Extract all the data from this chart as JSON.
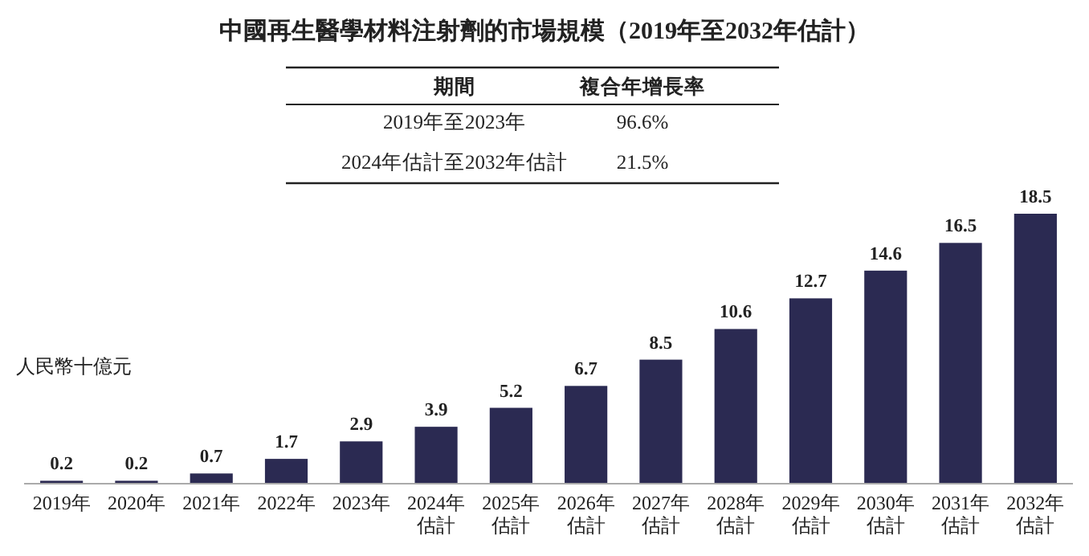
{
  "chart_data": {
    "type": "bar",
    "title": "中國再生醫學材料注射劑的市場規模（2019年至2032年估計）",
    "ylabel": "人民幣十億元",
    "categories": [
      "2019年",
      "2020年",
      "2021年",
      "2022年",
      "2023年",
      "2024年估計",
      "2025年估計",
      "2026年估計",
      "2027年估計",
      "2028年估計",
      "2029年估計",
      "2030年估計",
      "2031年估計",
      "2032年估計"
    ],
    "values": [
      0.2,
      0.2,
      0.7,
      1.7,
      2.9,
      3.9,
      5.2,
      6.7,
      8.5,
      10.6,
      12.7,
      14.6,
      16.5,
      18.5
    ],
    "color": "#2b2a52",
    "data_labels": true,
    "annotations": [
      "期間",
      "複合年增長率",
      "2019年至2023年",
      "96.6%",
      "2024年估計至2032年估計",
      "21.5%"
    ]
  }
}
